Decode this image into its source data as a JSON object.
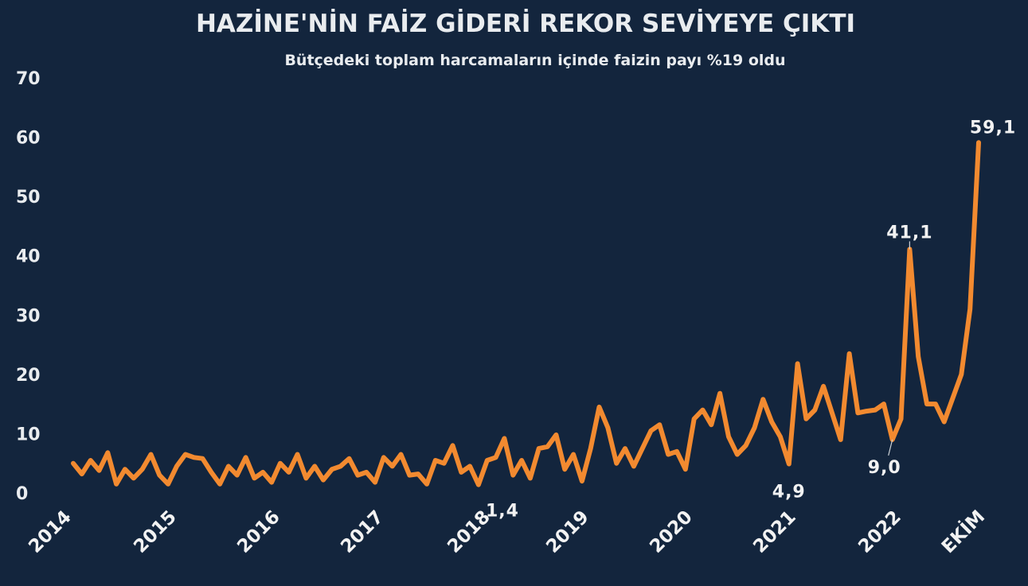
{
  "chart_data": {
    "type": "line",
    "title": "HAZİNE'NİN FAİZ GİDERİ REKOR SEVİYEYE ÇIKTI",
    "subtitle": "Bütçedeki toplam harcamaların içinde faizin payı %19 oldu",
    "xlabel": "",
    "ylabel": "",
    "ylim": [
      0,
      70
    ],
    "yticks": [
      "0",
      "10",
      "20",
      "30",
      "40",
      "50",
      "60",
      "70"
    ],
    "xtick_labels": [
      "2014",
      "2015",
      "2016",
      "2017",
      "2018",
      "2019",
      "2020",
      "2021",
      "2022",
      "EKİM"
    ],
    "grid": false,
    "legend": "none",
    "line_color": "#f28a30",
    "background_color": "#13253d",
    "text_color": "#e9ecef",
    "series": [
      {
        "values": [
          5.0,
          3.2,
          5.5,
          3.8,
          6.8,
          1.5,
          4.0,
          2.5,
          4.0,
          6.5,
          3.0,
          1.5,
          4.5,
          6.5,
          6.0,
          5.8,
          3.5,
          1.5,
          4.5,
          3.0,
          6.0,
          2.5,
          3.5,
          1.8,
          5.0,
          3.5,
          6.5,
          2.5,
          4.5,
          2.2,
          4.0,
          4.5,
          5.8,
          3.0,
          3.5,
          1.8,
          6.0,
          4.5,
          6.5,
          3.0,
          3.2,
          1.5,
          5.5,
          5.0,
          8.0,
          3.5,
          4.5,
          1.4,
          5.5,
          6.0,
          9.2,
          3.0,
          5.5,
          2.5,
          7.5,
          7.8,
          9.8,
          4.0,
          6.5,
          2.0,
          7.5,
          14.5,
          11.0,
          5.0,
          7.5,
          4.5,
          7.5,
          10.5,
          11.5,
          6.5,
          7.0,
          4.0,
          12.5,
          14.0,
          11.5,
          16.8,
          9.5,
          6.5,
          8.0,
          11.0,
          15.8,
          12.0,
          9.5,
          4.9,
          21.8,
          12.5,
          14.0,
          18.0,
          13.5,
          9.0,
          23.5,
          13.5,
          13.8,
          14.0,
          15.0,
          9.0,
          12.5,
          41.1,
          23.0,
          15.0,
          15.0,
          12.0,
          16.0,
          20.0,
          31.0,
          59.1
        ]
      }
    ],
    "annotations": [
      {
        "label": "1,4",
        "index": 47,
        "value": 1.4
      },
      {
        "label": "4,9",
        "index": 83,
        "value": 4.9
      },
      {
        "label": "9,0",
        "index": 95,
        "value": 9.0
      },
      {
        "label": "41,1",
        "index": 97,
        "value": 41.1
      },
      {
        "label": "59,1",
        "index": 105,
        "value": 59.1
      }
    ]
  }
}
